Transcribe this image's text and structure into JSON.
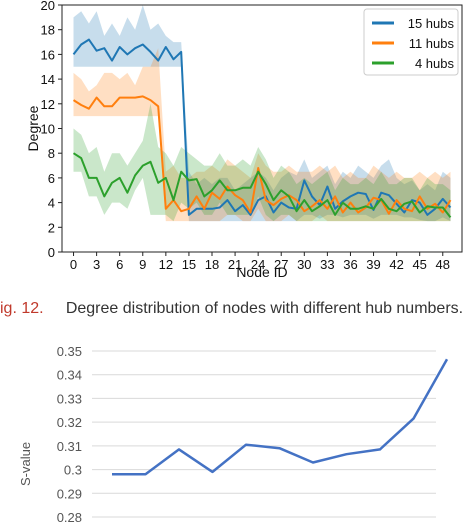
{
  "caption": {
    "label": "ig. 12.",
    "text": "Degree distribution of nodes with different hub numbers."
  },
  "colors": {
    "hubs15": "#1f77b4",
    "hubs11": "#ff7f0e",
    "hubs4": "#2ca02c",
    "svalue_line": "#4472c4",
    "caption_label": "#c0392b"
  },
  "chart_data": [
    {
      "type": "line",
      "title": "",
      "xlabel": "Node ID",
      "ylabel": "Degree",
      "xlim": [
        -1.5,
        50.5
      ],
      "ylim": [
        0,
        20
      ],
      "xticks": [
        0,
        3,
        6,
        9,
        12,
        15,
        18,
        21,
        24,
        27,
        30,
        33,
        36,
        39,
        42,
        45,
        48
      ],
      "yticks": [
        0,
        2,
        4,
        6,
        8,
        10,
        12,
        14,
        16,
        18,
        20
      ],
      "legend_position": "top-right",
      "grid": false,
      "series": [
        {
          "name": "15 hubs",
          "x": [
            0,
            1,
            2,
            3,
            4,
            5,
            6,
            7,
            8,
            9,
            10,
            11,
            12,
            13,
            14,
            15,
            16,
            17,
            18,
            19,
            20,
            21,
            22,
            23,
            24,
            25,
            26,
            27,
            28,
            29,
            30,
            31,
            32,
            33,
            34,
            35,
            36,
            37,
            38,
            39,
            40,
            41,
            42,
            43,
            44,
            45,
            46,
            47,
            48,
            49
          ],
          "values": [
            16,
            16.8,
            17.2,
            16.3,
            16.5,
            15.5,
            16.6,
            16,
            16.5,
            16.8,
            16.2,
            15.5,
            16.6,
            15.6,
            16.2,
            3,
            3.5,
            3.5,
            3.5,
            3.6,
            4.2,
            3.3,
            3.8,
            3,
            4.2,
            4.5,
            3.2,
            4,
            3.6,
            3.5,
            5.8,
            4.5,
            3.8,
            5.3,
            3.5,
            4.1,
            4.5,
            4.8,
            4.7,
            3.4,
            4.8,
            4.6,
            3.9,
            3.2,
            4.2,
            4,
            3,
            3.5,
            4.3,
            3.6
          ],
          "lower": [
            15,
            15,
            15,
            15,
            15,
            15,
            15,
            15,
            15,
            15,
            15,
            15,
            15,
            15,
            15,
            2.5,
            2.5,
            2.5,
            2.5,
            2.5,
            2.5,
            2.5,
            2.5,
            2.5,
            2.5,
            2.5,
            2.5,
            2.5,
            2.5,
            2.5,
            3,
            3,
            2.7,
            3,
            3,
            2.8,
            3,
            3,
            3,
            2.7,
            3,
            3,
            3,
            2.8,
            2.8,
            2.6,
            2.5,
            2.5,
            2.8,
            2.5
          ],
          "upper": [
            19,
            19.5,
            18.5,
            19.5,
            17.5,
            18.5,
            17.5,
            19,
            18,
            20,
            18,
            18.5,
            17.5,
            17,
            17,
            6.5,
            5.5,
            6,
            5.5,
            6,
            6,
            5,
            5.5,
            6,
            6.5,
            6,
            5,
            6,
            6.5,
            6.2,
            7.5,
            6,
            6.5,
            7,
            5.5,
            6.5,
            6,
            7,
            6.5,
            6,
            7,
            7.5,
            6,
            5.5,
            5.8,
            5,
            5.5,
            5,
            6.5,
            6
          ]
        },
        {
          "name": "11 hubs",
          "x": [
            0,
            1,
            2,
            3,
            4,
            5,
            6,
            7,
            8,
            9,
            10,
            11,
            12,
            13,
            14,
            15,
            16,
            17,
            18,
            19,
            20,
            21,
            22,
            23,
            24,
            25,
            26,
            27,
            28,
            29,
            30,
            31,
            32,
            33,
            34,
            35,
            36,
            37,
            38,
            39,
            40,
            41,
            42,
            43,
            44,
            45,
            46,
            47,
            48,
            49
          ],
          "values": [
            12.3,
            11.9,
            11.6,
            12.5,
            11.8,
            11.8,
            12.5,
            12.5,
            12.5,
            12.6,
            12.3,
            11.8,
            3.5,
            4.2,
            3.3,
            3.5,
            4.5,
            3.5,
            4.8,
            4.3,
            5.3,
            4.6,
            4.2,
            3.2,
            6.8,
            4.2,
            3.8,
            4.3,
            4.6,
            4.2,
            3.3,
            3.7,
            4.2,
            3.5,
            4.5,
            3.2,
            4,
            3.2,
            3.6,
            4.4,
            4.2,
            3.1,
            4.2,
            3.5,
            3.3,
            4.5,
            3.5,
            3.9,
            3.2,
            4.2
          ],
          "lower": [
            11,
            11,
            11,
            11,
            11,
            11,
            11,
            11,
            11,
            11,
            11,
            11,
            2.5,
            2.5,
            2.5,
            2.5,
            2.5,
            2.5,
            2.5,
            2.5,
            3,
            3,
            2.5,
            2.5,
            3.5,
            2.5,
            2.5,
            2.5,
            3,
            2.5,
            2.5,
            2.5,
            3,
            2.5,
            2.5,
            2.5,
            2.5,
            2.5,
            2.5,
            2.5,
            2.5,
            2.5,
            2.5,
            2.5,
            2.5,
            2.5,
            2.5,
            2.5,
            2.5,
            2.5
          ],
          "upper": [
            14.5,
            14,
            13,
            13.5,
            14.5,
            14.5,
            14,
            14.5,
            13.5,
            15,
            15,
            16.5,
            6.5,
            7,
            6,
            6,
            6.5,
            6.5,
            7,
            6.5,
            7.5,
            7,
            6.5,
            6,
            8,
            7,
            6.5,
            6.5,
            7,
            6.5,
            6.5,
            6.5,
            7,
            6.5,
            7,
            6,
            6.5,
            6,
            6,
            7,
            6.5,
            6,
            6.5,
            6,
            6,
            6.5,
            6,
            6.5,
            6,
            6.5
          ]
        },
        {
          "name": "4 hubs",
          "x": [
            0,
            1,
            2,
            3,
            4,
            5,
            6,
            7,
            8,
            9,
            10,
            11,
            12,
            13,
            14,
            15,
            16,
            17,
            18,
            19,
            20,
            21,
            22,
            23,
            24,
            25,
            26,
            27,
            28,
            29,
            30,
            31,
            32,
            33,
            34,
            35,
            36,
            37,
            38,
            39,
            40,
            41,
            42,
            43,
            44,
            45,
            46,
            47,
            48,
            49
          ],
          "values": [
            8,
            7.6,
            6,
            6,
            4.5,
            5.6,
            6,
            4.8,
            6.2,
            7,
            7.3,
            5.6,
            6,
            4.2,
            6.5,
            5.8,
            5.9,
            4.5,
            5,
            5.8,
            5,
            5,
            5.2,
            5.2,
            6.5,
            5.5,
            4.2,
            5,
            4.5,
            3.3,
            4.2,
            3.3,
            3.7,
            4.2,
            3,
            4,
            3.5,
            3.5,
            3.7,
            3.5,
            4.3,
            3.5,
            3.3,
            3.9,
            4.1,
            3.2,
            3.7,
            3.6,
            3.6,
            2.8
          ],
          "lower": [
            6.5,
            6.5,
            4.5,
            4.5,
            3,
            4,
            4,
            3.5,
            5,
            6,
            3,
            3,
            3,
            2.5,
            4,
            3.5,
            4,
            3,
            3,
            4,
            3,
            3,
            3,
            3,
            4.5,
            3,
            2.5,
            3,
            3,
            2.5,
            2.5,
            2.5,
            2.5,
            2.5,
            2.5,
            2.5,
            2.5,
            2.5,
            2.5,
            2.5,
            2.5,
            2.5,
            2.5,
            2.5,
            2.5,
            2.5,
            2.5,
            2.5,
            2.5,
            2.5
          ],
          "upper": [
            10,
            9.5,
            8,
            8.5,
            6.5,
            8,
            8,
            7,
            8,
            9,
            12,
            8.5,
            8,
            7,
            8.5,
            8,
            7.5,
            7,
            7,
            8,
            7,
            7,
            7.5,
            7,
            8.5,
            7.5,
            6,
            7,
            6.5,
            5.5,
            6,
            5.5,
            6,
            6.5,
            5,
            6,
            5.5,
            5.5,
            6,
            5.5,
            6.5,
            5.5,
            5.5,
            6,
            6,
            5,
            6,
            5.5,
            5.5,
            5
          ]
        }
      ]
    },
    {
      "type": "line",
      "title": "",
      "xlabel": "",
      "ylabel": "S-value",
      "ylim": [
        0.28,
        0.35
      ],
      "yticks": [
        0.28,
        0.29,
        0.3,
        0.31,
        0.32,
        0.33,
        0.34,
        0.35
      ],
      "ytick_labels": [
        "0.28",
        "0.29",
        "0.3",
        "0.31",
        "0.32",
        "0.33",
        "0.34",
        "0.35"
      ],
      "grid": true,
      "x": [
        1,
        2,
        3,
        4,
        5,
        6,
        7,
        8,
        9,
        10,
        11
      ],
      "values": [
        0.298,
        0.298,
        0.3085,
        0.299,
        0.3105,
        0.309,
        0.303,
        0.3065,
        0.3085,
        0.3215,
        0.3465
      ]
    }
  ]
}
